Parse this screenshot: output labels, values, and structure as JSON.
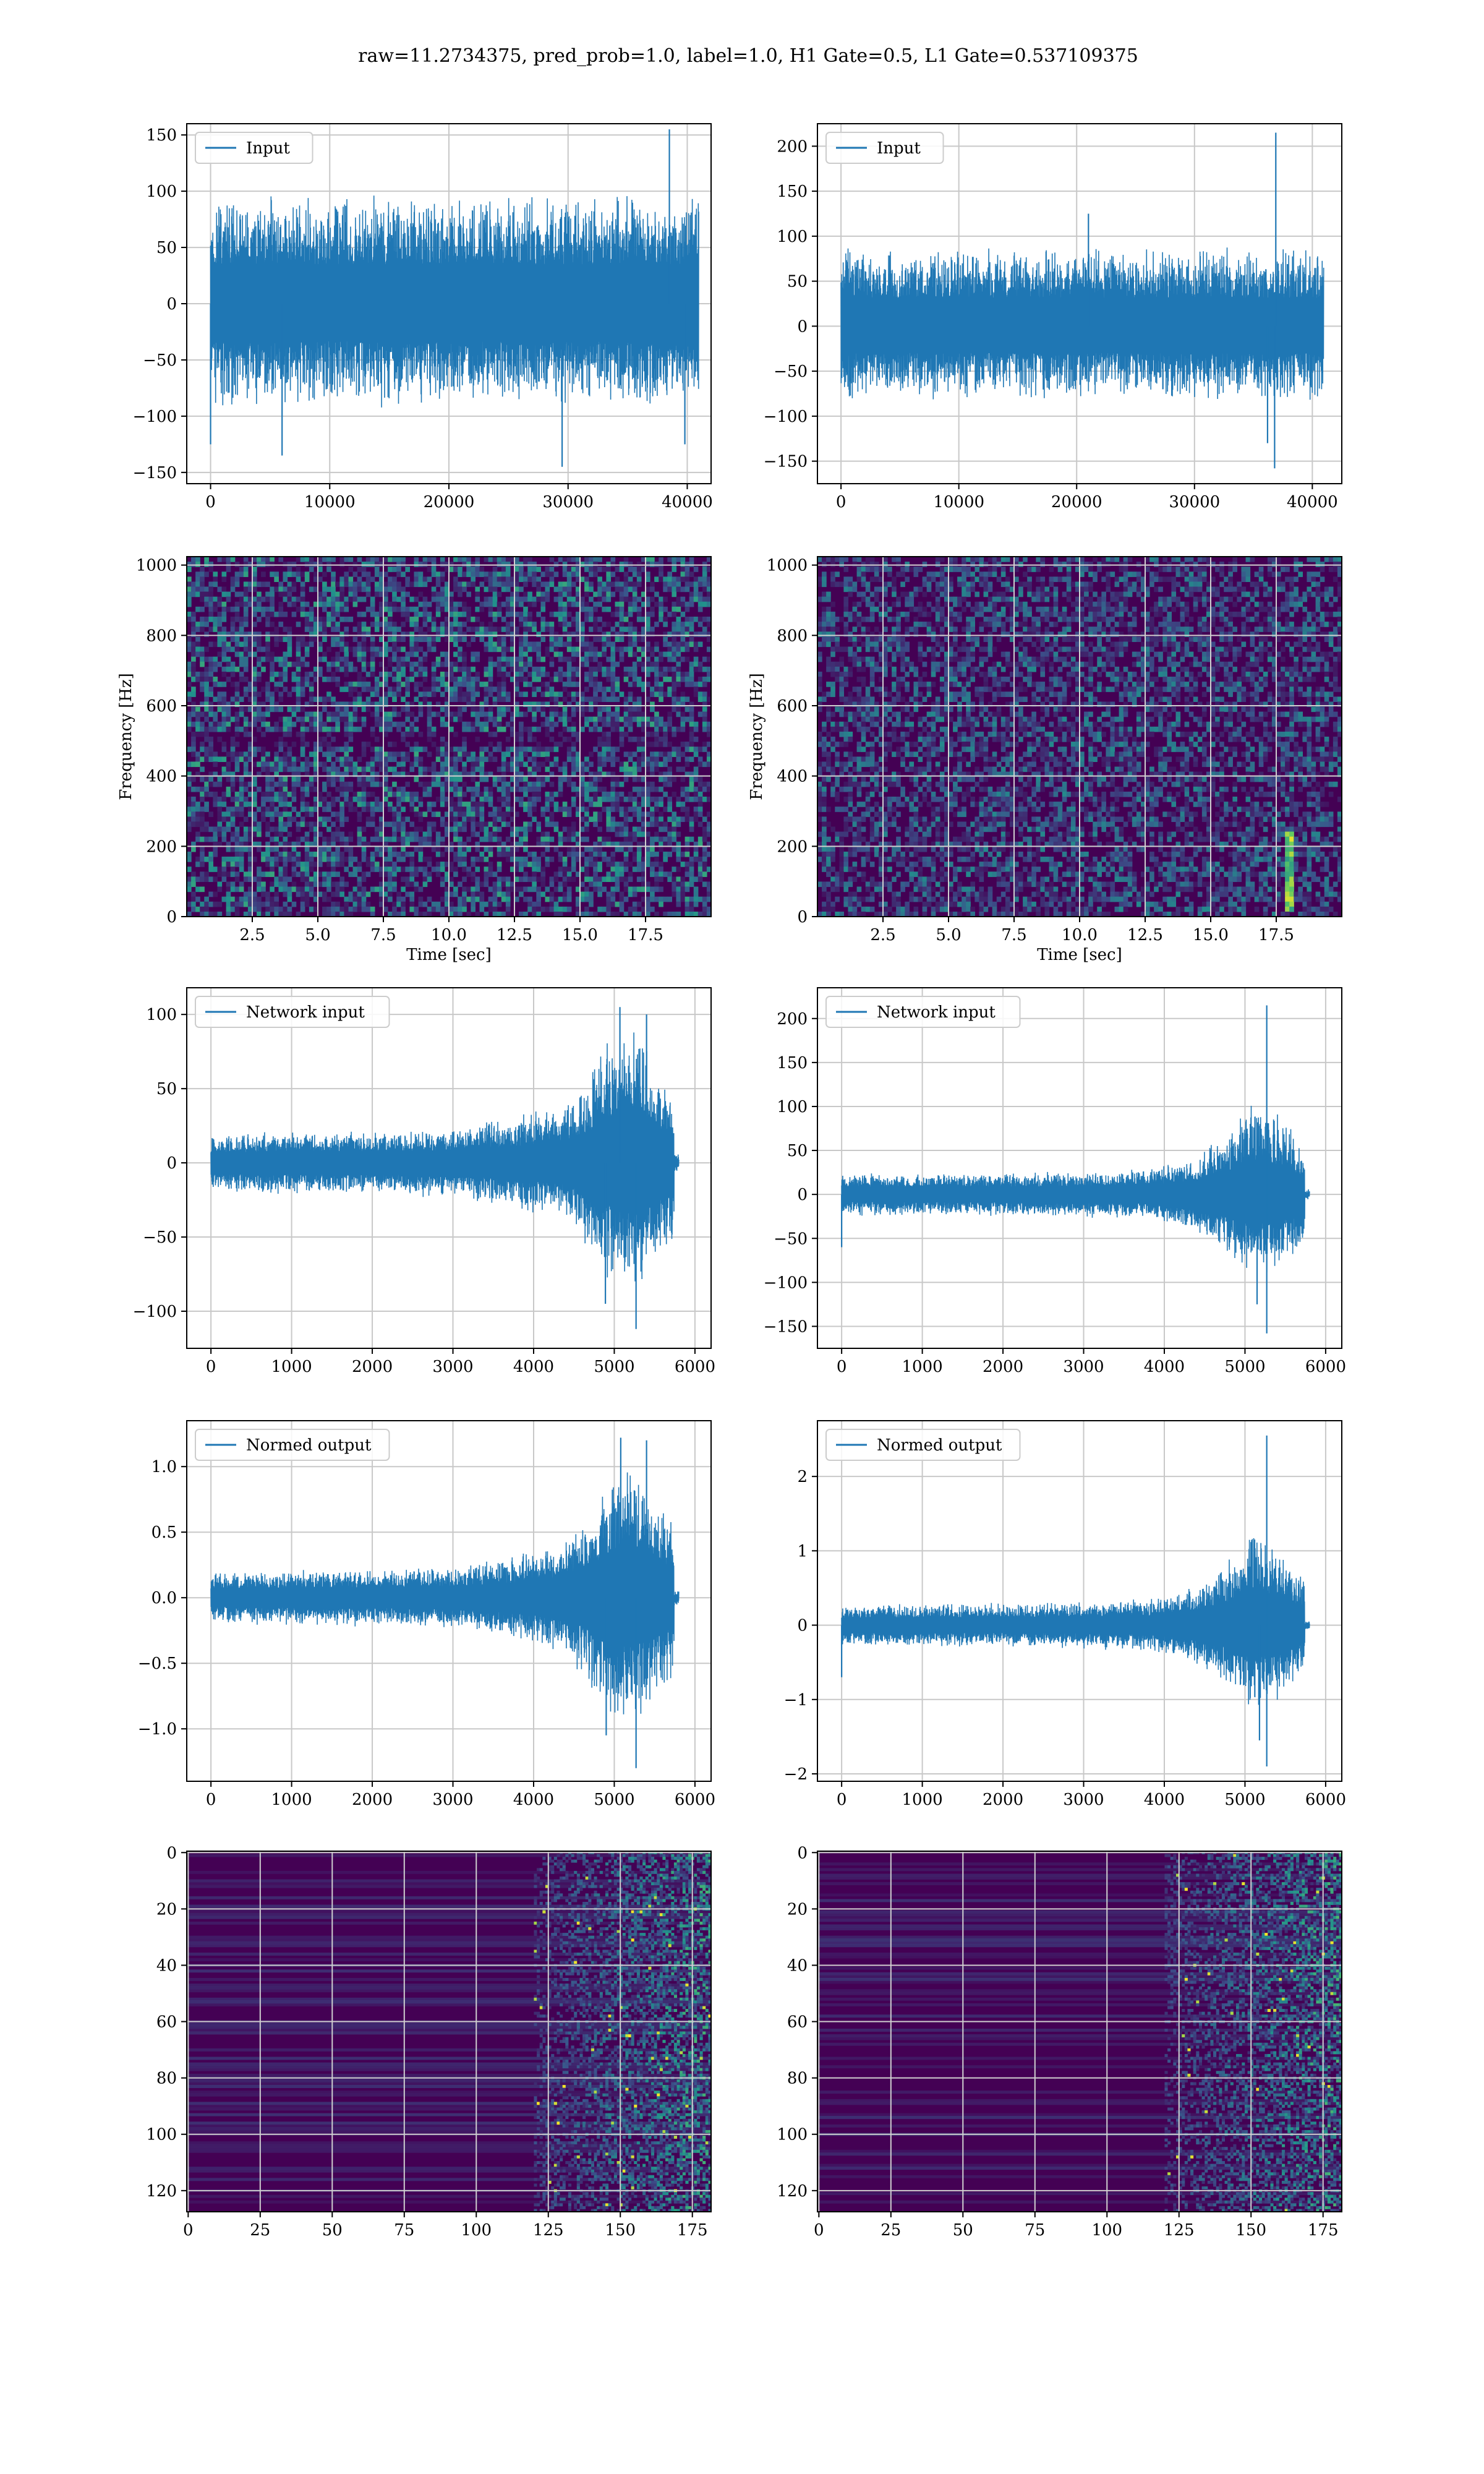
{
  "figure": {
    "suptitle": "raw=11.2734375, pred_prob=1.0, label=1.0, H1 Gate=0.5, L1 Gate=0.537109375"
  },
  "colors": {
    "line": "#1f77b4",
    "grid": "#c8c8c8",
    "viridis_low": "#440154",
    "viridis_mid": "#21918c",
    "viridis_high": "#fde725"
  },
  "chart_data": [
    {
      "id": "input-h1",
      "type": "line",
      "legend": "Input",
      "legend_position": "top-left",
      "xlim": [
        -2000,
        42000
      ],
      "ylim": [
        -160,
        160
      ],
      "xticks": [
        0,
        10000,
        20000,
        30000,
        40000
      ],
      "yticks": [
        -150,
        -100,
        -50,
        0,
        50,
        100,
        150
      ],
      "x_range": [
        0,
        40960
      ],
      "grid": true,
      "envelope": [
        {
          "x": 0,
          "low": -95,
          "high": 100
        },
        {
          "x": 10000,
          "low": -95,
          "high": 100
        },
        {
          "x": 20000,
          "low": -95,
          "high": 100
        },
        {
          "x": 30000,
          "low": -95,
          "high": 100
        },
        {
          "x": 40960,
          "low": -95,
          "high": 100
        }
      ],
      "spikes": [
        {
          "x": 38500,
          "y": 155
        },
        {
          "x": 29500,
          "y": -145
        },
        {
          "x": 6000,
          "y": -135
        },
        {
          "x": 39800,
          "y": -125
        },
        {
          "x": 0,
          "y": -125
        }
      ]
    },
    {
      "id": "input-l1",
      "type": "line",
      "legend": "Input",
      "legend_position": "top-left",
      "xlim": [
        -2000,
        42500
      ],
      "ylim": [
        -175,
        225
      ],
      "xticks": [
        0,
        10000,
        20000,
        30000,
        40000
      ],
      "yticks": [
        -150,
        -100,
        -50,
        0,
        50,
        100,
        150,
        200
      ],
      "x_range": [
        0,
        40960
      ],
      "grid": true,
      "envelope": [
        {
          "x": 0,
          "low": -85,
          "high": 90
        },
        {
          "x": 10000,
          "low": -85,
          "high": 90
        },
        {
          "x": 20000,
          "low": -85,
          "high": 90
        },
        {
          "x": 30000,
          "low": -85,
          "high": 90
        },
        {
          "x": 40960,
          "low": -85,
          "high": 90
        }
      ],
      "spikes": [
        {
          "x": 36900,
          "y": 215
        },
        {
          "x": 36800,
          "y": -158
        },
        {
          "x": 21000,
          "y": 125
        },
        {
          "x": 36200,
          "y": -130
        }
      ]
    },
    {
      "id": "spectrogram-h1",
      "type": "heatmap",
      "xlabel": "Time [sec]",
      "ylabel": "Frequency [Hz]",
      "xlim": [
        0,
        20
      ],
      "ylim": [
        0,
        1024
      ],
      "xticks": [
        2.5,
        5.0,
        7.5,
        10.0,
        12.5,
        15.0,
        17.5
      ],
      "xtick_labels": [
        "2.5",
        "5.0",
        "7.5",
        "10.0",
        "12.5",
        "15.0",
        "17.5"
      ],
      "yticks": [
        0,
        200,
        400,
        600,
        800,
        1000
      ],
      "grid": true,
      "features": [
        {
          "kind": "horizontal-band",
          "freq": 500,
          "width": 20,
          "level": -0.5
        }
      ]
    },
    {
      "id": "spectrogram-l1",
      "type": "heatmap",
      "xlabel": "Time [sec]",
      "ylabel": "Frequency [Hz]",
      "xlim": [
        0,
        20
      ],
      "ylim": [
        0,
        1024
      ],
      "xticks": [
        2.5,
        5.0,
        7.5,
        10.0,
        12.5,
        15.0,
        17.5
      ],
      "xtick_labels": [
        "2.5",
        "5.0",
        "7.5",
        "10.0",
        "12.5",
        "15.0",
        "17.5"
      ],
      "yticks": [
        0,
        200,
        400,
        600,
        800,
        1000
      ],
      "grid": true,
      "features": [
        {
          "kind": "chirp",
          "time": 18.0,
          "freq_low": 20,
          "freq_high": 240,
          "level": 1.0
        }
      ]
    },
    {
      "id": "network-input-h1",
      "type": "line",
      "legend": "Network input",
      "legend_position": "top-left",
      "xlim": [
        -300,
        6200
      ],
      "ylim": [
        -125,
        118
      ],
      "xticks": [
        0,
        1000,
        2000,
        3000,
        4000,
        5000,
        6000
      ],
      "yticks": [
        -100,
        -50,
        0,
        50,
        100
      ],
      "x_range": [
        0,
        5800
      ],
      "taper_start": 5740,
      "taper_amp": 6,
      "grid": true,
      "envelope": [
        {
          "x": 0,
          "low": -20,
          "high": 20
        },
        {
          "x": 1000,
          "low": -22,
          "high": 22
        },
        {
          "x": 2000,
          "low": -22,
          "high": 22
        },
        {
          "x": 3000,
          "low": -24,
          "high": 24
        },
        {
          "x": 3800,
          "low": -32,
          "high": 32
        },
        {
          "x": 4400,
          "low": -40,
          "high": 45
        },
        {
          "x": 4700,
          "low": -65,
          "high": 60
        },
        {
          "x": 5000,
          "low": -85,
          "high": 95
        },
        {
          "x": 5300,
          "low": -95,
          "high": 95
        },
        {
          "x": 5500,
          "low": -75,
          "high": 70
        },
        {
          "x": 5740,
          "low": -60,
          "high": 55
        }
      ],
      "spikes": [
        {
          "x": 5070,
          "y": 105
        },
        {
          "x": 5270,
          "y": -112
        },
        {
          "x": 4890,
          "y": -95
        },
        {
          "x": 5400,
          "y": 100
        }
      ]
    },
    {
      "id": "network-input-l1",
      "type": "line",
      "legend": "Network input",
      "legend_position": "top-left",
      "xlim": [
        -300,
        6200
      ],
      "ylim": [
        -175,
        235
      ],
      "xticks": [
        0,
        1000,
        2000,
        3000,
        4000,
        5000,
        6000
      ],
      "yticks": [
        -150,
        -100,
        -50,
        0,
        50,
        100,
        150,
        200
      ],
      "x_range": [
        0,
        5800
      ],
      "taper_start": 5740,
      "taper_amp": 6,
      "grid": true,
      "envelope": [
        {
          "x": 0,
          "low": -25,
          "high": 25
        },
        {
          "x": 1000,
          "low": -25,
          "high": 25
        },
        {
          "x": 2000,
          "low": -25,
          "high": 25
        },
        {
          "x": 3000,
          "low": -27,
          "high": 27
        },
        {
          "x": 3800,
          "low": -30,
          "high": 30
        },
        {
          "x": 4400,
          "low": -45,
          "high": 45
        },
        {
          "x": 4800,
          "low": -70,
          "high": 75
        },
        {
          "x": 5100,
          "low": -95,
          "high": 110
        },
        {
          "x": 5400,
          "low": -90,
          "high": 95
        },
        {
          "x": 5740,
          "low": -55,
          "high": 60
        }
      ],
      "spikes": [
        {
          "x": 5270,
          "y": 215
        },
        {
          "x": 5270,
          "y": -158
        },
        {
          "x": 0,
          "y": -60
        },
        {
          "x": 5150,
          "y": -125
        }
      ]
    },
    {
      "id": "normed-output-h1",
      "type": "line",
      "legend": "Normed output",
      "legend_position": "top-left",
      "xlim": [
        -300,
        6200
      ],
      "ylim": [
        -1.4,
        1.35
      ],
      "xticks": [
        0,
        1000,
        2000,
        3000,
        4000,
        5000,
        6000
      ],
      "yticks": [
        -1.0,
        -0.5,
        0.0,
        0.5,
        1.0
      ],
      "ytick_labels": [
        "−1.0",
        "−0.5",
        "0.0",
        "0.5",
        "1.0"
      ],
      "x_range": [
        0,
        5800
      ],
      "taper_start": 5740,
      "taper_amp": 0.06,
      "grid": true,
      "envelope": [
        {
          "x": 0,
          "low": -0.2,
          "high": 0.2
        },
        {
          "x": 1000,
          "low": -0.22,
          "high": 0.22
        },
        {
          "x": 2000,
          "low": -0.22,
          "high": 0.22
        },
        {
          "x": 3000,
          "low": -0.25,
          "high": 0.25
        },
        {
          "x": 3800,
          "low": -0.33,
          "high": 0.33
        },
        {
          "x": 4400,
          "low": -0.45,
          "high": 0.45
        },
        {
          "x": 4700,
          "low": -0.7,
          "high": 0.65
        },
        {
          "x": 5000,
          "low": -1.0,
          "high": 1.0
        },
        {
          "x": 5300,
          "low": -1.0,
          "high": 1.05
        },
        {
          "x": 5500,
          "low": -0.8,
          "high": 0.8
        },
        {
          "x": 5740,
          "low": -0.65,
          "high": 0.6
        }
      ],
      "spikes": [
        {
          "x": 5080,
          "y": 1.22
        },
        {
          "x": 5270,
          "y": -1.3
        },
        {
          "x": 5400,
          "y": 1.2
        },
        {
          "x": 4900,
          "y": -1.05
        }
      ]
    },
    {
      "id": "normed-output-l1",
      "type": "line",
      "legend": "Normed output",
      "legend_position": "top-left",
      "xlim": [
        -300,
        6200
      ],
      "ylim": [
        -2.1,
        2.75
      ],
      "xticks": [
        0,
        1000,
        2000,
        3000,
        4000,
        5000,
        6000
      ],
      "yticks": [
        -2,
        -1,
        0,
        1,
        2
      ],
      "ytick_labels": [
        "−2",
        "−1",
        "0",
        "1",
        "2"
      ],
      "x_range": [
        0,
        5800
      ],
      "taper_start": 5740,
      "taper_amp": 0.06,
      "grid": true,
      "envelope": [
        {
          "x": 0,
          "low": -0.28,
          "high": 0.28
        },
        {
          "x": 1000,
          "low": -0.3,
          "high": 0.3
        },
        {
          "x": 2000,
          "low": -0.3,
          "high": 0.3
        },
        {
          "x": 3000,
          "low": -0.32,
          "high": 0.32
        },
        {
          "x": 3800,
          "low": -0.36,
          "high": 0.36
        },
        {
          "x": 4400,
          "low": -0.55,
          "high": 0.55
        },
        {
          "x": 4800,
          "low": -0.85,
          "high": 0.9
        },
        {
          "x": 5100,
          "low": -1.2,
          "high": 1.35
        },
        {
          "x": 5400,
          "low": -1.1,
          "high": 1.15
        },
        {
          "x": 5740,
          "low": -0.65,
          "high": 0.7
        }
      ],
      "spikes": [
        {
          "x": 5270,
          "y": 2.55
        },
        {
          "x": 5270,
          "y": -1.9
        },
        {
          "x": 0,
          "y": -0.7
        },
        {
          "x": 5180,
          "y": -1.55
        }
      ]
    },
    {
      "id": "feature-map-h1",
      "type": "heatmap",
      "xlim": [
        -0.5,
        181.5
      ],
      "ylim": [
        127.5,
        -0.5
      ],
      "y_inverted": true,
      "xticks": [
        0,
        25,
        50,
        75,
        100,
        125,
        150,
        175
      ],
      "yticks": [
        0,
        20,
        40,
        60,
        80,
        100,
        120
      ],
      "grid": true,
      "rows": 128,
      "active_from_column": 120
    },
    {
      "id": "feature-map-l1",
      "type": "heatmap",
      "xlim": [
        -0.5,
        181.5
      ],
      "ylim": [
        127.5,
        -0.5
      ],
      "y_inverted": true,
      "xticks": [
        0,
        25,
        50,
        75,
        100,
        125,
        150,
        175
      ],
      "yticks": [
        0,
        20,
        40,
        60,
        80,
        100,
        120
      ],
      "grid": true,
      "rows": 128,
      "active_from_column": 120
    }
  ]
}
